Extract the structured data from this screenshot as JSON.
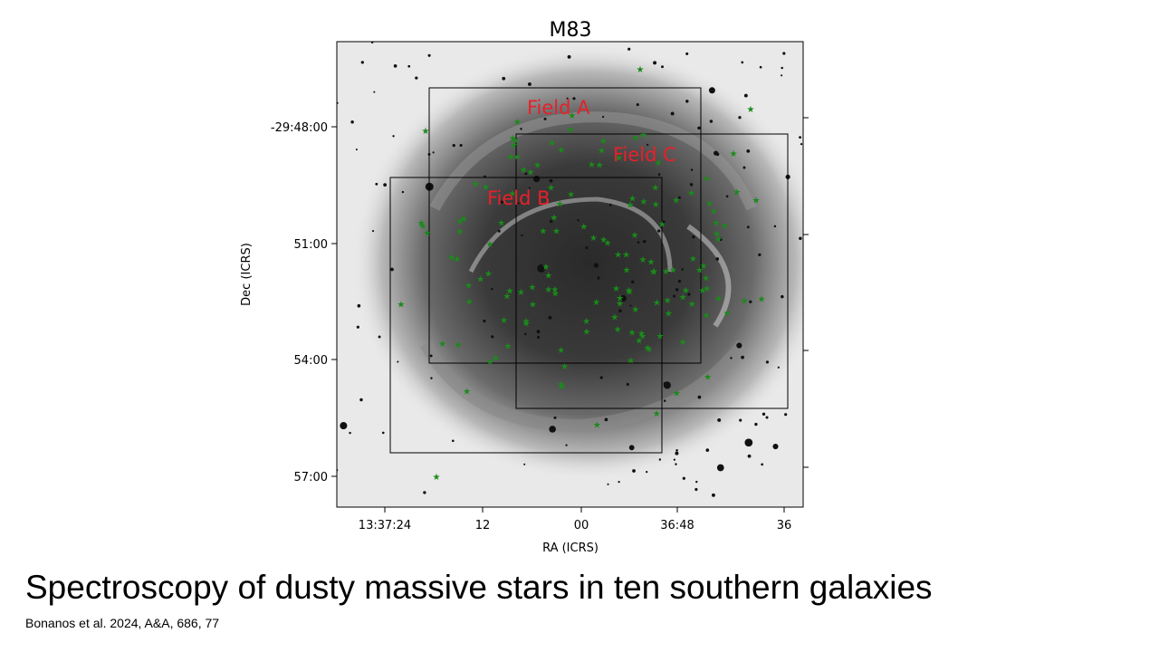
{
  "slide": {
    "title": "Spectroscopy of dusty massive stars in ten southern galaxies",
    "citation": "Bonanos et al. 2024, A&A, 686, 77"
  },
  "figure": {
    "title": "M83",
    "x_label": "RA (ICRS)",
    "y_label": "Dec (ICRS)",
    "x_ticks": [
      "13:37:24",
      "12",
      "00",
      "36:48",
      "36"
    ],
    "y_ticks": [
      "-29:48:00",
      "51:00",
      "54:00",
      "57:00"
    ],
    "fields": [
      "Field A",
      "Field B",
      "Field C"
    ]
  }
}
